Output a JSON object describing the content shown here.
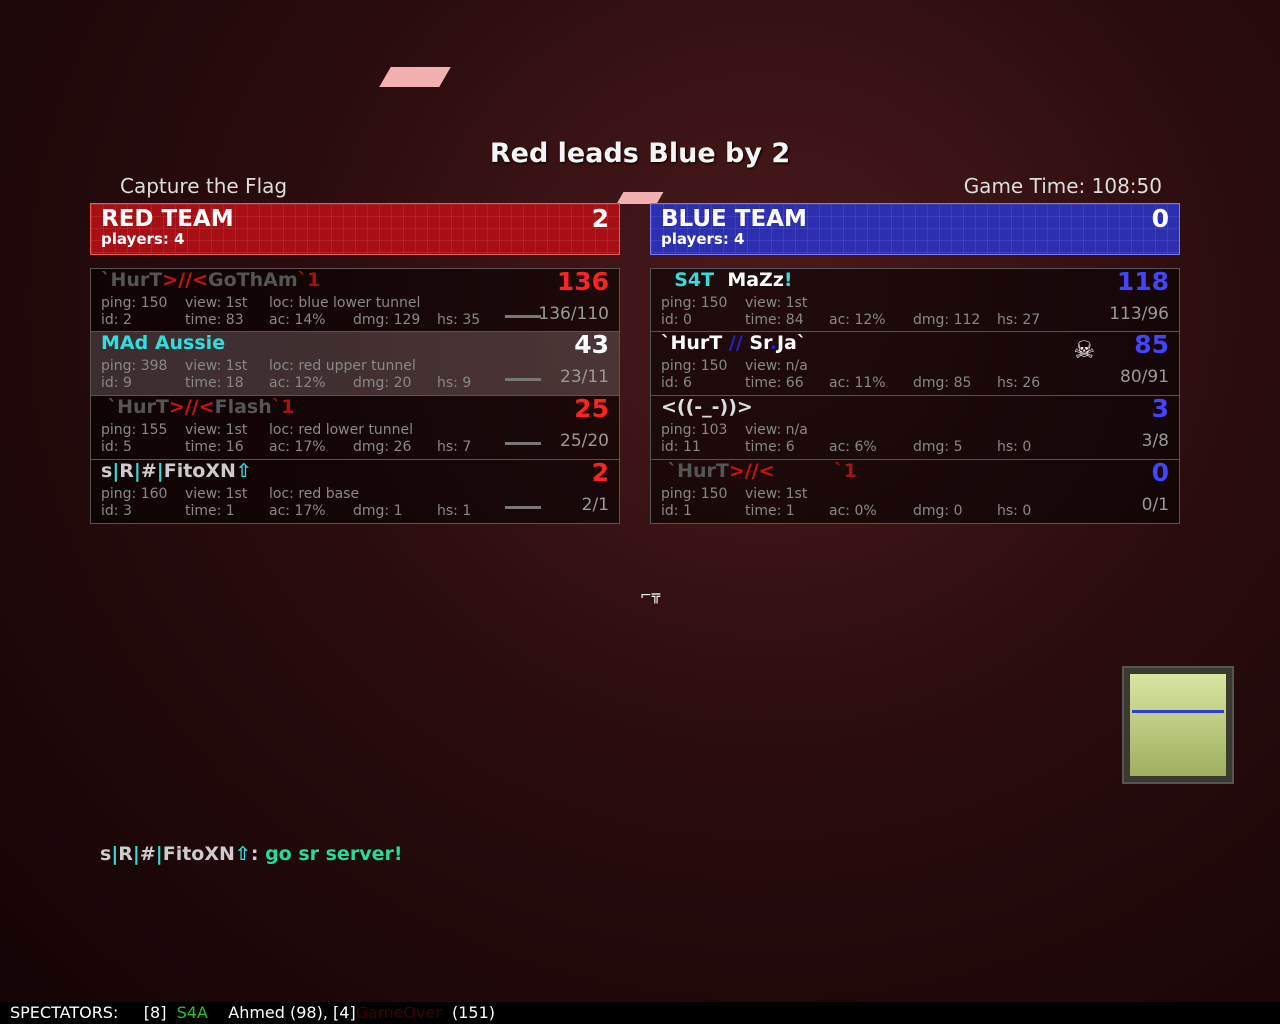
{
  "headline": "Red leads Blue by 2",
  "mode": "Capture the Flag",
  "game_time": "Game Time: 108:50",
  "red": {
    "name": "RED TEAM",
    "score": "2",
    "players": "players: 4",
    "color": "#a80f14",
    "rows": [
      {
        "name": [
          {
            "t": "`HurT",
            "c": "#555"
          },
          {
            "t": ">//<",
            "c": "#c11"
          },
          {
            "t": "GoThAm",
            "c": "#555"
          },
          {
            "t": "`1",
            "c": "#a11"
          }
        ],
        "score": "136",
        "score_color": "#f22",
        "ping": "ping: 150",
        "view": "view: 1st",
        "loc": "loc: blue lower tunnel",
        "id": "id: 2",
        "time": "time: 83",
        "ac": "ac: 14%",
        "dmg": "dmg: 129",
        "hs": "hs: 35",
        "kd": "136/110",
        "weapon": "rifle-icon"
      },
      {
        "name": [
          {
            "t": "MAd Aussie",
            "c": "#3dd"
          }
        ],
        "score": "43",
        "score_color": "#fff",
        "ping": "ping: 398",
        "view": "view: 1st",
        "loc": "loc: red upper tunnel",
        "id": "id: 9",
        "time": "time: 18",
        "ac": "ac: 12%",
        "dmg": "dmg: 20",
        "hs": "hs: 9",
        "kd": "23/11",
        "weapon": "shotgun-icon",
        "highlight": true
      },
      {
        "name": [
          {
            "t": " `HurT",
            "c": "#555"
          },
          {
            "t": ">//<",
            "c": "#c11"
          },
          {
            "t": "Flash",
            "c": "#555"
          },
          {
            "t": "`1",
            "c": "#a11"
          }
        ],
        "score": "25",
        "score_color": "#f22",
        "ping": "ping: 155",
        "view": "view: 1st",
        "loc": "loc: red lower tunnel",
        "id": "id: 5",
        "time": "time: 16",
        "ac": "ac: 17%",
        "dmg": "dmg: 26",
        "hs": "hs: 7",
        "kd": "25/20",
        "weapon": "ak47-icon"
      },
      {
        "name": [
          {
            "t": "s",
            "c": "#ccc"
          },
          {
            "t": "|",
            "c": "#3dd"
          },
          {
            "t": "R",
            "c": "#ccc"
          },
          {
            "t": "|",
            "c": "#3dd"
          },
          {
            "t": "#",
            "c": "#ccc"
          },
          {
            "t": "|",
            "c": "#3dd"
          },
          {
            "t": "FitoXN",
            "c": "#ccc"
          },
          {
            "t": "⇧",
            "c": "#3dd"
          }
        ],
        "score": "2",
        "score_color": "#f22",
        "ping": "ping: 160",
        "view": "view: 1st",
        "loc": "loc: red base",
        "id": "id: 3",
        "time": "time: 1",
        "ac": "ac: 17%",
        "dmg": "dmg: 1",
        "hs": "hs: 1",
        "kd": "2/1",
        "weapon": "ak47-icon"
      }
    ]
  },
  "blue": {
    "name": "BLUE TEAM",
    "score": "0",
    "players": "players: 4",
    "color": "#2c2fb0",
    "rows": [
      {
        "name": [
          {
            "t": "  S4T  ",
            "c": "#3dd"
          },
          {
            "t": "MaZz",
            "c": "#fff"
          },
          {
            "t": "!",
            "c": "#3dd"
          }
        ],
        "score": "118",
        "score_color": "#44f",
        "ping": "ping: 150",
        "view": "view: 1st",
        "loc": "",
        "id": "id: 0",
        "time": "time: 84",
        "ac": "ac: 12%",
        "dmg": "dmg: 112",
        "hs": "hs: 27",
        "kd": "113/96"
      },
      {
        "name": [
          {
            "t": "`HurT ",
            "c": "#fff"
          },
          {
            "t": "//",
            "c": "#22c"
          },
          {
            "t": " Sr",
            "c": "#fff"
          },
          {
            "t": ".",
            "c": "#22c"
          },
          {
            "t": "Ja`",
            "c": "#fff"
          }
        ],
        "score": "85",
        "score_color": "#44f",
        "ping": "ping: 150",
        "view": "view: n/a",
        "loc": "",
        "id": "id: 6",
        "time": "time: 66",
        "ac": "ac: 11%",
        "dmg": "dmg: 85",
        "hs": "hs: 26",
        "kd": "80/91",
        "dead": true
      },
      {
        "name": [
          {
            "t": "<((-_-))>",
            "c": "#ddd"
          }
        ],
        "score": "3",
        "score_color": "#44f",
        "ping": "ping: 103",
        "view": "view: n/a",
        "loc": "",
        "id": "id: 11",
        "time": "time: 6",
        "ac": "ac: 6%",
        "dmg": "dmg: 5",
        "hs": "hs: 0",
        "kd": "3/8"
      },
      {
        "name": [
          {
            "t": " `HurT",
            "c": "#555"
          },
          {
            "t": ">//<",
            "c": "#c11"
          },
          {
            "t": "         ",
            "c": "#300"
          },
          {
            "t": "`1",
            "c": "#a11"
          }
        ],
        "score": "0",
        "score_color": "#44f",
        "ping": "ping: 150",
        "view": "view: 1st",
        "loc": "",
        "id": "id: 1",
        "time": "time: 1",
        "ac": "ac: 0%",
        "dmg": "dmg: 0",
        "hs": "hs: 0",
        "kd": "0/1"
      }
    ]
  },
  "chat": {
    "sender": [
      {
        "t": "s",
        "c": "#ccc"
      },
      {
        "t": "|",
        "c": "#3dd"
      },
      {
        "t": "R",
        "c": "#ccc"
      },
      {
        "t": "|",
        "c": "#3dd"
      },
      {
        "t": "#",
        "c": "#ccc"
      },
      {
        "t": "|",
        "c": "#3dd"
      },
      {
        "t": "FitoXN",
        "c": "#ccc"
      },
      {
        "t": "⇧",
        "c": "#3dd"
      },
      {
        "t": ": ",
        "c": "#ccc"
      }
    ],
    "message": "go sr server!",
    "message_color": "#2d9"
  },
  "spectators": [
    {
      "t": "SPECTATORS:     ",
      "c": "#fff"
    },
    {
      "t": "[8]  ",
      "c": "#fff"
    },
    {
      "t": "S4A",
      "c": "#3b3"
    },
    {
      "t": "    Ahmed (98), [4]",
      "c": "#fff"
    },
    {
      "t": "GameOver",
      "c": "#400"
    },
    {
      "t": "  (151)",
      "c": "#fff"
    }
  ]
}
